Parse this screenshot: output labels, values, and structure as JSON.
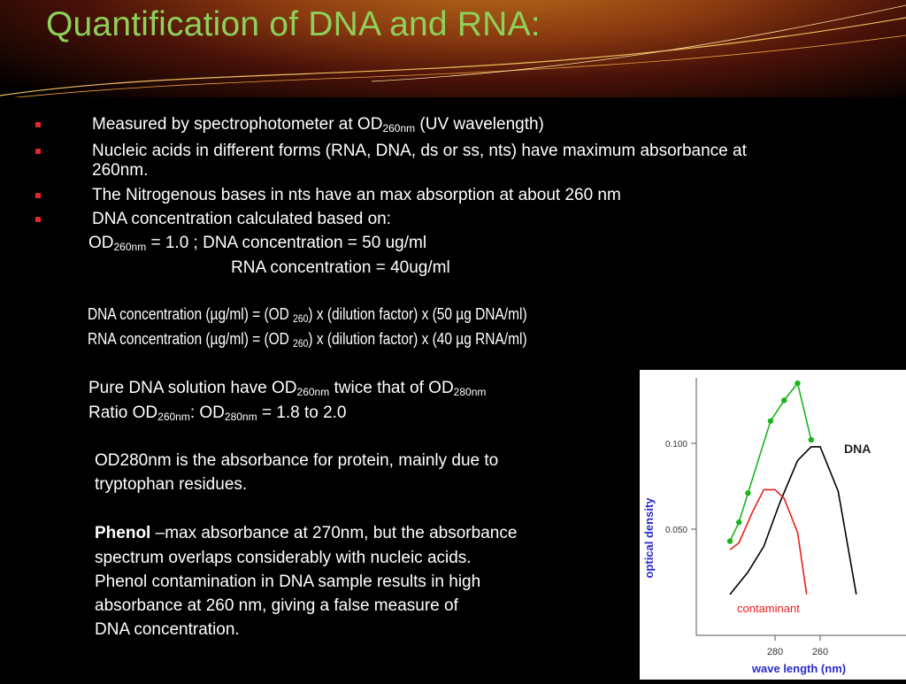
{
  "slide": {
    "title": "Quantification of DNA and RNA:",
    "bullets": [
      {
        "pre": "Measured by spectrophotometer at OD",
        "sub": "260nm",
        "post": " (UV wavelength)"
      },
      {
        "line1": "Nucleic acids in different forms (RNA, DNA, ds or ss, nts) have maximum absorbance at",
        "line2": "260nm."
      },
      {
        "text": "The Nitrogenous bases in nts have an max absorption at about 260 nm"
      },
      {
        "text": "DNA concentration calculated based on:"
      }
    ],
    "od_line": {
      "pre": "OD",
      "sub": "260nm",
      "post": " = 1.0 ; DNA concentration = 50 ug/ml"
    },
    "rna_line": "RNA concentration = 40ug/ml",
    "formula_dna": {
      "pre": "DNA concentration (µg/ml) = (OD ",
      "sub": "260",
      "post": ") x (dilution factor) x (50 µg DNA/ml)"
    },
    "formula_rna": {
      "pre": "RNA concentration (µg/ml) = (OD ",
      "sub": "260",
      "post": ") x (dilution factor) x (40 µg RNA/ml)"
    },
    "pure_line": {
      "pre": "Pure DNA solution have OD",
      "sub1": "260nm",
      "mid": " twice that of OD",
      "sub2": "280nm"
    },
    "ratio_line": {
      "pre": "Ratio OD",
      "sub1": "260nm",
      "mid": ": OD",
      "sub2": "280nm",
      "post": "  = 1.8 to 2.0"
    },
    "od280_lines": [
      "OD280nm is the absorbance for protein, mainly due to",
      "tryptophan residues."
    ],
    "phenol": {
      "bold": "Phenol",
      "rest1": " –max absorbance at 270nm, but the absorbance",
      "lines": [
        "spectrum overlaps considerably with nucleic acids.",
        "Phenol contamination in DNA sample results in high",
        "absorbance at 260 nm, giving a false measure of",
        "DNA concentration."
      ]
    }
  },
  "chart_data": {
    "type": "line",
    "ylabel": "optical density",
    "xlabel": "wave length (nm)",
    "x_ticks": [
      "280",
      "260"
    ],
    "y_ticks": [
      "0.100",
      "0.050"
    ],
    "series": [
      {
        "name": "DNA",
        "color": "#000000",
        "points": [
          [
            300,
            0.012
          ],
          [
            292,
            0.025
          ],
          [
            285,
            0.04
          ],
          [
            278,
            0.065
          ],
          [
            270,
            0.09
          ],
          [
            264,
            0.098
          ],
          [
            260,
            0.098
          ],
          [
            252,
            0.072
          ],
          [
            244,
            0.012
          ]
        ]
      },
      {
        "name": "contaminant",
        "color": "#e8201c",
        "points": [
          [
            300,
            0.038
          ],
          [
            296,
            0.042
          ],
          [
            290,
            0.06
          ],
          [
            285,
            0.073
          ],
          [
            280,
            0.073
          ],
          [
            276,
            0.068
          ],
          [
            270,
            0.048
          ],
          [
            266,
            0.012
          ]
        ]
      },
      {
        "name": "",
        "color": "#1ab51a",
        "points": [
          [
            300,
            0.043
          ],
          [
            296,
            0.054
          ],
          [
            292,
            0.071
          ],
          [
            282,
            0.113
          ],
          [
            276,
            0.125
          ],
          [
            270,
            0.135
          ],
          [
            264,
            0.102
          ]
        ]
      }
    ]
  }
}
